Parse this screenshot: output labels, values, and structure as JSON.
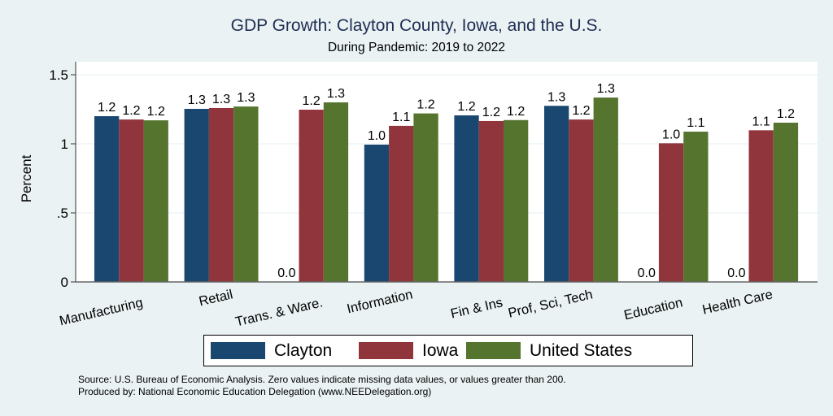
{
  "chart_data": {
    "type": "bar",
    "title": "GDP Growth: Clayton County, Iowa, and the U.S.",
    "subtitle": "During Pandemic: 2019 to 2022",
    "xlabel": "",
    "ylabel": "Percent",
    "ylim": [
      0,
      1.6
    ],
    "yticks": [
      0,
      0.5,
      1,
      1.5
    ],
    "ytick_labels": [
      "0",
      ".5",
      "1",
      "1.5"
    ],
    "grid": true,
    "categories": [
      "Manufacturing",
      "Retail",
      "Trans. & Ware.",
      "Information",
      "Fin & Ins",
      "Prof, Sci, Tech",
      "Education",
      "Health Care"
    ],
    "series": [
      {
        "name": "Clayton",
        "color": "#1a476f",
        "values": [
          1.2,
          1.253,
          0.0,
          0.994,
          1.206,
          1.275,
          0.0,
          0.0
        ],
        "labels": [
          "1.2",
          "1.3",
          "0.0",
          "1.0",
          "1.2",
          "1.3",
          "0.0",
          "0.0"
        ]
      },
      {
        "name": "Iowa",
        "color": "#90353b",
        "values": [
          1.176,
          1.259,
          1.247,
          1.13,
          1.165,
          1.176,
          1.004,
          1.098
        ],
        "labels": [
          "1.2",
          "1.3",
          "1.2",
          "1.1",
          "1.2",
          "1.2",
          "1.0",
          "1.1"
        ]
      },
      {
        "name": "United States",
        "color": "#55752f",
        "values": [
          1.17,
          1.27,
          1.3,
          1.22,
          1.172,
          1.335,
          1.088,
          1.153
        ],
        "labels": [
          "1.2",
          "1.3",
          "1.3",
          "1.2",
          "1.2",
          "1.3",
          "1.1",
          "1.2"
        ]
      }
    ],
    "legend": "bottom"
  },
  "footer": {
    "source": "Source: U.S. Bureau of Economic Analysis. Zero values indicate missing data values, or values greater than 200.",
    "produced_by": "Produced by: National Economic Education Delegation (www.NEEDelegation.org)"
  }
}
